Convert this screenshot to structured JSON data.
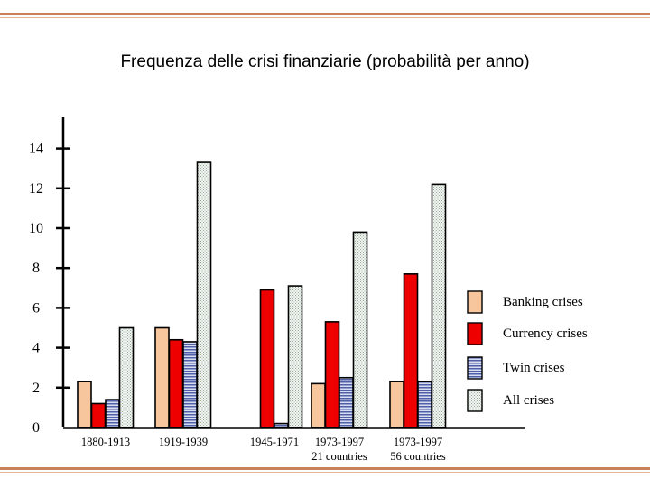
{
  "title": "Frequenza delle crisi finanziarie (probabilità per anno)",
  "chart_data": {
    "type": "bar",
    "title": "Frequenza delle crisi finanziarie (probabilità per anno)",
    "categories": [
      "1880-1913",
      "1919-1939",
      "1945-1971",
      "1973-1997",
      "1973-1997"
    ],
    "category_sublabels": [
      "",
      "",
      "",
      "21 countries",
      "56 countries"
    ],
    "yticks": [
      0,
      2,
      4,
      6,
      8,
      10,
      12,
      14
    ],
    "ylim": [
      0,
      14.5
    ],
    "grid": false,
    "legend_position": "right",
    "series": [
      {
        "name": "Banking crises",
        "color": "#f8c69c",
        "pattern": "solid",
        "values": [
          2.3,
          5.0,
          0.0,
          2.2,
          2.3
        ]
      },
      {
        "name": "Currency crises",
        "color": "#ee0000",
        "pattern": "solid",
        "values": [
          1.2,
          4.4,
          6.9,
          5.3,
          7.7
        ]
      },
      {
        "name": "Twin crises",
        "color": "#4f5fa8",
        "pattern": "stripes",
        "values": [
          1.4,
          4.3,
          0.2,
          2.5,
          2.3
        ]
      },
      {
        "name": "All crises",
        "color": "#e4ece4",
        "pattern": "dots",
        "values": [
          5.0,
          13.3,
          7.1,
          9.8,
          12.2
        ]
      }
    ]
  }
}
